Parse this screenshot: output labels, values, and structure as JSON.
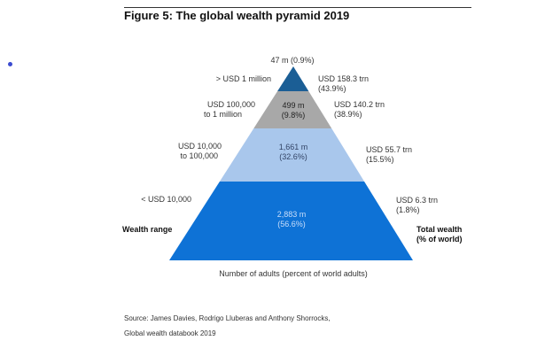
{
  "page": {
    "title": "Figure 5: The global wealth pyramid 2019",
    "source_line1": "Source: James Davies, Rodrigo Lluberas and Anthony Shorrocks,",
    "source_line2": "Global wealth databook 2019"
  },
  "colors": {
    "tier_fills": [
      "#1b5e95",
      "#a8a8a8",
      "#a9c7ec",
      "#0e72d6"
    ],
    "tier_text": [
      "#ffffff",
      "#222222",
      "#334466",
      "#c9defa"
    ],
    "title_rule": "#333333"
  },
  "chart_data": {
    "type": "pyramid",
    "title": "Figure 5: The global wealth pyramid 2019",
    "left_axis_label": "Wealth range",
    "right_axis_label_line1": "Total wealth",
    "right_axis_label_line2": "(% of world)",
    "xlabel": "Number of adults (percent of world adults)",
    "top_label": "47 m (0.9%)",
    "tiers": [
      {
        "range_line1": "> USD 1 million",
        "range_line2": "",
        "adults_millions": 47,
        "adults_pct": 0.9,
        "inside_line1": "",
        "inside_line2": "",
        "wealth_trn": 158.3,
        "wealth_pct": 43.9,
        "wealth_line1": "USD 158.3 trn",
        "wealth_line2": "(43.9%)"
      },
      {
        "range_line1": "USD 100,000",
        "range_line2": "to 1 million",
        "adults_millions": 499,
        "adults_pct": 9.8,
        "inside_line1": "499 m",
        "inside_line2": "(9.8%)",
        "wealth_trn": 140.2,
        "wealth_pct": 38.9,
        "wealth_line1": "USD 140.2 trn",
        "wealth_line2": "(38.9%)"
      },
      {
        "range_line1": "USD 10,000",
        "range_line2": "to 100,000",
        "adults_millions": 1661,
        "adults_pct": 32.6,
        "inside_line1": "1,661 m",
        "inside_line2": "(32.6%)",
        "wealth_trn": 55.7,
        "wealth_pct": 15.5,
        "wealth_line1": "USD 55.7 trn",
        "wealth_line2": "(15.5%)"
      },
      {
        "range_line1": "< USD 10,000",
        "range_line2": "",
        "adults_millions": 2883,
        "adults_pct": 56.6,
        "inside_line1": "2,883 m",
        "inside_line2": "(56.6%)",
        "wealth_trn": 6.3,
        "wealth_pct": 1.8,
        "wealth_line1": "USD 6.3 trn",
        "wealth_line2": "(1.8%)"
      }
    ]
  }
}
